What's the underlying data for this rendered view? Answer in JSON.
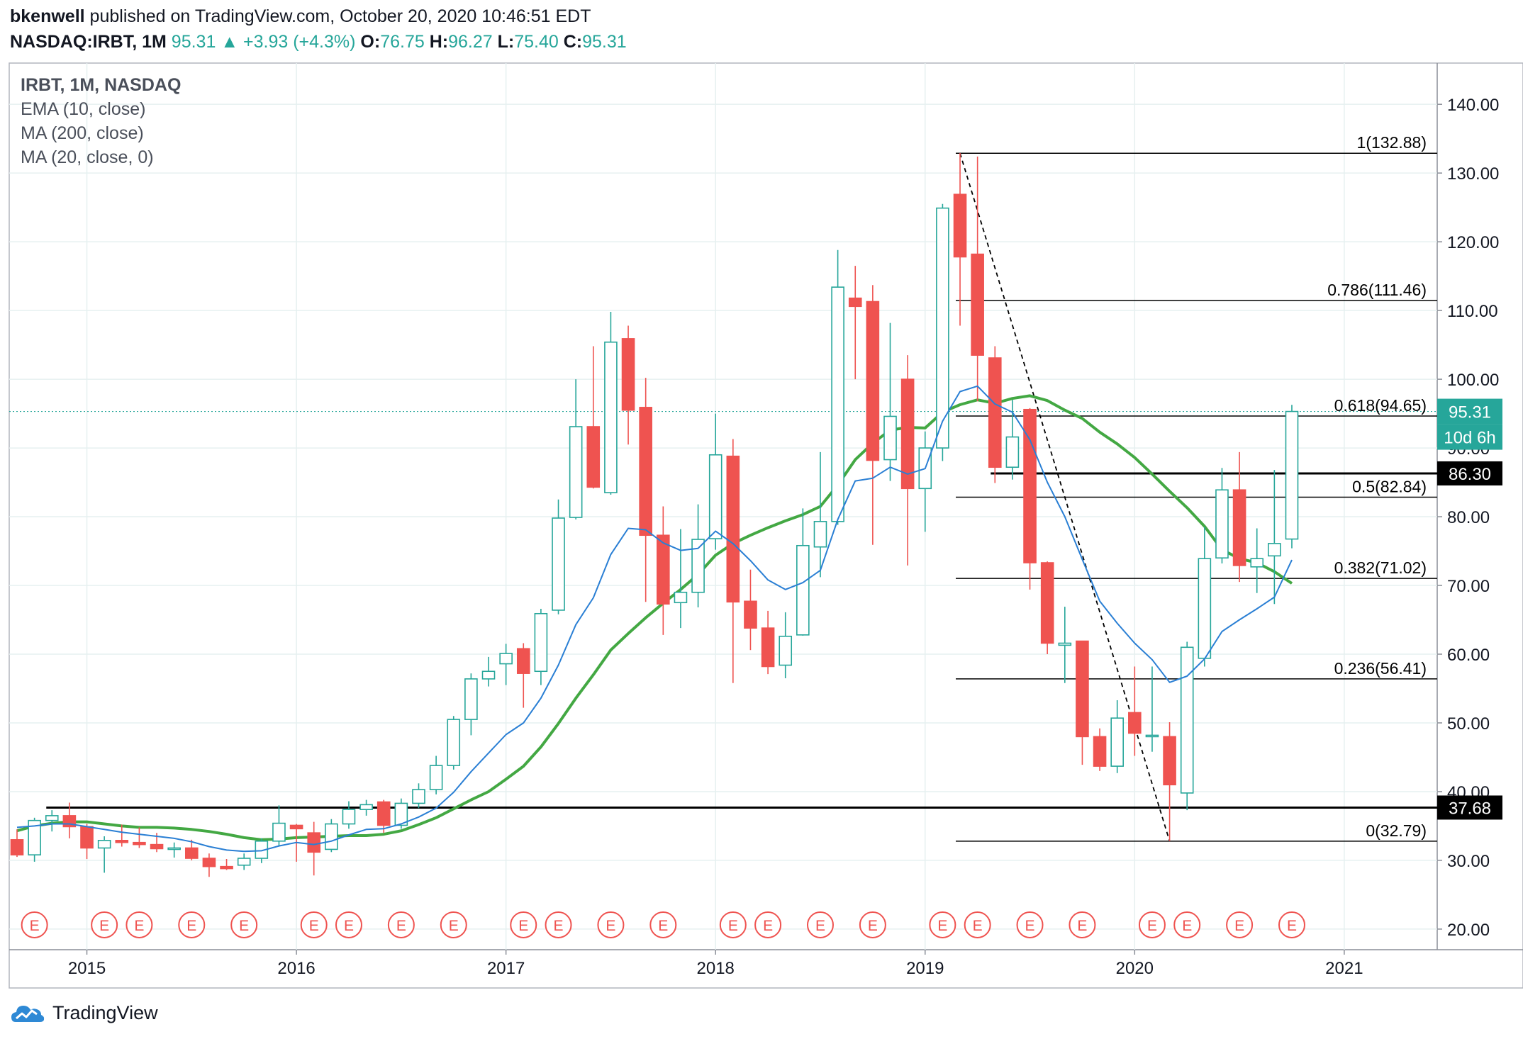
{
  "header": {
    "author": "bkenwell",
    "published_text": "published on TradingView.com, October 20, 2020 10:46:51 EDT",
    "symbol": "NASDAQ:IRBT, 1M",
    "last": "95.31",
    "change": "+3.93 (+4.3%)",
    "o_label": "O:",
    "o": "76.75",
    "h_label": "H:",
    "h": "96.27",
    "l_label": "L:",
    "l": "75.40",
    "c_label": "C:",
    "c": "95.31"
  },
  "legend": {
    "title": "IRBT, 1M, NASDAQ",
    "ema": "EMA (10, close)",
    "ma200": "MA (200, close)",
    "ma20": "MA (20, close, 0)"
  },
  "footer": {
    "brand": "TradingView"
  },
  "colors": {
    "up": "#26a69a",
    "down": "#ef5350",
    "ema": "#2a7fd4",
    "ma20": "#43a843",
    "fib": "#000000",
    "earnings": "#ef5350",
    "grid": "#e6f0f0"
  },
  "chart_data": {
    "type": "candlestick",
    "ylim": [
      17,
      146
    ],
    "y_ticks": [
      "20.00",
      "30.00",
      "40.00",
      "50.00",
      "60.00",
      "70.00",
      "80.00",
      "90.00",
      "100.00",
      "110.00",
      "120.00",
      "130.00",
      "140.00"
    ],
    "x_ticks": [
      "2015",
      "2016",
      "2017",
      "2018",
      "2019",
      "2020",
      "2021"
    ],
    "candles": [
      {
        "t": "2014-09",
        "o": 33.0,
        "h": 34.5,
        "l": 30.5,
        "c": 30.8
      },
      {
        "t": "2014-10",
        "o": 30.8,
        "h": 36.2,
        "l": 29.8,
        "c": 35.8
      },
      {
        "t": "2014-11",
        "o": 35.8,
        "h": 37.3,
        "l": 34.2,
        "c": 36.5
      },
      {
        "t": "2014-12",
        "o": 36.5,
        "h": 38.4,
        "l": 33.2,
        "c": 34.9
      },
      {
        "t": "2015-01",
        "o": 34.9,
        "h": 35.3,
        "l": 30.2,
        "c": 31.8
      },
      {
        "t": "2015-02",
        "o": 31.8,
        "h": 33.5,
        "l": 28.2,
        "c": 32.9
      },
      {
        "t": "2015-03",
        "o": 32.9,
        "h": 35.2,
        "l": 32.0,
        "c": 32.6
      },
      {
        "t": "2015-04",
        "o": 32.6,
        "h": 34.8,
        "l": 31.8,
        "c": 32.3
      },
      {
        "t": "2015-05",
        "o": 32.3,
        "h": 34.0,
        "l": 31.2,
        "c": 31.7
      },
      {
        "t": "2015-06",
        "o": 31.7,
        "h": 32.6,
        "l": 30.4,
        "c": 31.8
      },
      {
        "t": "2015-07",
        "o": 31.8,
        "h": 33.0,
        "l": 30.0,
        "c": 30.3
      },
      {
        "t": "2015-08",
        "o": 30.3,
        "h": 31.0,
        "l": 27.6,
        "c": 29.1
      },
      {
        "t": "2015-09",
        "o": 29.1,
        "h": 30.2,
        "l": 28.6,
        "c": 28.8
      },
      {
        "t": "2015-10",
        "o": 29.3,
        "h": 31.0,
        "l": 28.6,
        "c": 30.3
      },
      {
        "t": "2015-11",
        "o": 30.3,
        "h": 33.2,
        "l": 29.6,
        "c": 32.8
      },
      {
        "t": "2015-12",
        "o": 32.8,
        "h": 38.0,
        "l": 32.1,
        "c": 35.4
      },
      {
        "t": "2016-01",
        "o": 35.1,
        "h": 35.3,
        "l": 29.8,
        "c": 34.6
      },
      {
        "t": "2016-02",
        "o": 34.0,
        "h": 35.6,
        "l": 27.8,
        "c": 31.2
      },
      {
        "t": "2016-03",
        "o": 31.6,
        "h": 36.0,
        "l": 31.2,
        "c": 35.3
      },
      {
        "t": "2016-04",
        "o": 35.3,
        "h": 38.6,
        "l": 34.6,
        "c": 37.4
      },
      {
        "t": "2016-05",
        "o": 37.4,
        "h": 38.8,
        "l": 36.5,
        "c": 38.1
      },
      {
        "t": "2016-06",
        "o": 38.5,
        "h": 38.8,
        "l": 34.0,
        "c": 35.1
      },
      {
        "t": "2016-07",
        "o": 35.1,
        "h": 39.0,
        "l": 34.6,
        "c": 38.3
      },
      {
        "t": "2016-08",
        "o": 38.3,
        "h": 41.2,
        "l": 37.6,
        "c": 40.3
      },
      {
        "t": "2016-09",
        "o": 40.3,
        "h": 45.2,
        "l": 39.6,
        "c": 43.8
      },
      {
        "t": "2016-10",
        "o": 43.8,
        "h": 51.0,
        "l": 43.2,
        "c": 50.5
      },
      {
        "t": "2016-11",
        "o": 50.5,
        "h": 57.2,
        "l": 48.2,
        "c": 56.4
      },
      {
        "t": "2016-12",
        "o": 56.4,
        "h": 59.6,
        "l": 55.3,
        "c": 57.5
      },
      {
        "t": "2017-01",
        "o": 58.6,
        "h": 61.5,
        "l": 55.5,
        "c": 60.1
      },
      {
        "t": "2017-02",
        "o": 60.8,
        "h": 61.6,
        "l": 52.2,
        "c": 57.2
      },
      {
        "t": "2017-03",
        "o": 57.5,
        "h": 66.6,
        "l": 55.5,
        "c": 65.9
      },
      {
        "t": "2017-04",
        "o": 66.4,
        "h": 82.5,
        "l": 65.8,
        "c": 79.8
      },
      {
        "t": "2017-05",
        "o": 79.9,
        "h": 100.0,
        "l": 79.6,
        "c": 93.1
      },
      {
        "t": "2017-06",
        "o": 93.1,
        "h": 104.8,
        "l": 84.1,
        "c": 84.3
      },
      {
        "t": "2017-07",
        "o": 83.5,
        "h": 109.8,
        "l": 83.2,
        "c": 105.4
      },
      {
        "t": "2017-08",
        "o": 105.9,
        "h": 107.8,
        "l": 90.5,
        "c": 95.5
      },
      {
        "t": "2017-09",
        "o": 95.9,
        "h": 100.2,
        "l": 67.6,
        "c": 77.3
      },
      {
        "t": "2017-10",
        "o": 77.3,
        "h": 81.5,
        "l": 62.8,
        "c": 67.3
      },
      {
        "t": "2017-11",
        "o": 67.5,
        "h": 78.2,
        "l": 63.8,
        "c": 69.0
      },
      {
        "t": "2017-12",
        "o": 69.0,
        "h": 81.8,
        "l": 66.8,
        "c": 76.7
      },
      {
        "t": "2018-01",
        "o": 76.8,
        "h": 95.0,
        "l": 75.2,
        "c": 89.0
      },
      {
        "t": "2018-02",
        "o": 88.8,
        "h": 91.3,
        "l": 55.8,
        "c": 67.6
      },
      {
        "t": "2018-03",
        "o": 67.7,
        "h": 72.3,
        "l": 60.6,
        "c": 63.8
      },
      {
        "t": "2018-04",
        "o": 63.8,
        "h": 66.3,
        "l": 57.1,
        "c": 58.2
      },
      {
        "t": "2018-05",
        "o": 58.4,
        "h": 66.1,
        "l": 56.5,
        "c": 62.6
      },
      {
        "t": "2018-06",
        "o": 62.8,
        "h": 81.2,
        "l": 62.7,
        "c": 75.8
      },
      {
        "t": "2018-07",
        "o": 75.6,
        "h": 89.4,
        "l": 71.2,
        "c": 79.3
      },
      {
        "t": "2018-08",
        "o": 79.3,
        "h": 118.8,
        "l": 78.8,
        "c": 113.4
      },
      {
        "t": "2018-09",
        "o": 111.8,
        "h": 116.5,
        "l": 100.0,
        "c": 110.6
      },
      {
        "t": "2018-10",
        "o": 111.3,
        "h": 113.7,
        "l": 75.9,
        "c": 88.2
      },
      {
        "t": "2018-11",
        "o": 88.3,
        "h": 108.2,
        "l": 85.2,
        "c": 94.6
      },
      {
        "t": "2018-12",
        "o": 100.0,
        "h": 103.5,
        "l": 72.9,
        "c": 84.1
      },
      {
        "t": "2019-01",
        "o": 84.1,
        "h": 92.4,
        "l": 77.8,
        "c": 90.0
      },
      {
        "t": "2019-02",
        "o": 90.0,
        "h": 125.5,
        "l": 88.1,
        "c": 124.9
      },
      {
        "t": "2019-03",
        "o": 126.9,
        "h": 132.9,
        "l": 107.8,
        "c": 117.8
      },
      {
        "t": "2019-04",
        "o": 118.2,
        "h": 132.4,
        "l": 96.8,
        "c": 103.5
      },
      {
        "t": "2019-05",
        "o": 103.1,
        "h": 104.8,
        "l": 84.9,
        "c": 87.2
      },
      {
        "t": "2019-06",
        "o": 87.2,
        "h": 97.0,
        "l": 85.4,
        "c": 91.6
      },
      {
        "t": "2019-07",
        "o": 95.6,
        "h": 95.8,
        "l": 69.4,
        "c": 73.3
      },
      {
        "t": "2019-08",
        "o": 73.3,
        "h": 73.5,
        "l": 60.0,
        "c": 61.6
      },
      {
        "t": "2019-09",
        "o": 61.3,
        "h": 66.9,
        "l": 55.8,
        "c": 61.6
      },
      {
        "t": "2019-10",
        "o": 61.9,
        "h": 61.9,
        "l": 43.9,
        "c": 48.0
      },
      {
        "t": "2019-11",
        "o": 48.0,
        "h": 49.2,
        "l": 43.0,
        "c": 43.7
      },
      {
        "t": "2019-12",
        "o": 43.7,
        "h": 53.3,
        "l": 42.7,
        "c": 50.7
      },
      {
        "t": "2020-01",
        "o": 51.5,
        "h": 58.2,
        "l": 45.2,
        "c": 48.5
      },
      {
        "t": "2020-02",
        "o": 48.0,
        "h": 58.2,
        "l": 45.8,
        "c": 48.2
      },
      {
        "t": "2020-03",
        "o": 48.0,
        "h": 50.1,
        "l": 32.8,
        "c": 41.0
      },
      {
        "t": "2020-04",
        "o": 39.8,
        "h": 61.8,
        "l": 37.3,
        "c": 61.0
      },
      {
        "t": "2020-05",
        "o": 59.4,
        "h": 78.5,
        "l": 58.2,
        "c": 73.9
      },
      {
        "t": "2020-06",
        "o": 74.0,
        "h": 87.1,
        "l": 73.2,
        "c": 83.9
      },
      {
        "t": "2020-07",
        "o": 83.9,
        "h": 89.4,
        "l": 70.5,
        "c": 72.9
      },
      {
        "t": "2020-08",
        "o": 72.7,
        "h": 78.3,
        "l": 68.9,
        "c": 73.9
      },
      {
        "t": "2020-09",
        "o": 74.3,
        "h": 86.8,
        "l": 67.3,
        "c": 76.1
      },
      {
        "t": "2020-10",
        "o": 76.75,
        "h": 96.27,
        "l": 75.4,
        "c": 95.31
      }
    ],
    "ema10": [
      34.8,
      35.0,
      35.3,
      35.3,
      34.9,
      34.5,
      34.1,
      33.8,
      33.5,
      33.2,
      32.7,
      32.0,
      31.5,
      31.3,
      31.4,
      32.1,
      32.6,
      32.3,
      32.8,
      33.7,
      34.5,
      34.6,
      35.3,
      36.3,
      37.6,
      39.9,
      42.9,
      45.6,
      48.3,
      50.0,
      53.6,
      58.4,
      64.3,
      68.2,
      74.5,
      78.3,
      78.1,
      76.2,
      75.1,
      75.4,
      77.9,
      76.1,
      73.6,
      70.8,
      69.4,
      70.4,
      72.2,
      79.6,
      85.2,
      85.6,
      87.2,
      86.2,
      87.0,
      93.9,
      98.2,
      99.0,
      96.4,
      95.2,
      91.2,
      85.0,
      80.0,
      73.8,
      67.7,
      64.5,
      61.6,
      59.2,
      55.9,
      56.8,
      59.3,
      63.3,
      65.0,
      66.6,
      68.3,
      73.7
    ],
    "ma20": [
      34.3,
      35.0,
      35.4,
      35.6,
      35.6,
      35.3,
      35.0,
      34.8,
      34.8,
      34.7,
      34.5,
      34.2,
      33.8,
      33.3,
      33.0,
      33.1,
      33.3,
      33.4,
      33.5,
      33.6,
      33.6,
      33.8,
      34.3,
      35.2,
      36.2,
      37.5,
      38.8,
      40.0,
      41.8,
      43.7,
      46.5,
      49.9,
      53.6,
      57.0,
      60.6,
      63.0,
      65.3,
      67.4,
      69.4,
      71.6,
      74.4,
      76.1,
      77.3,
      78.4,
      79.4,
      80.3,
      81.5,
      84.6,
      88.3,
      90.7,
      92.6,
      93.0,
      92.9,
      95.2,
      96.3,
      97.0,
      96.5,
      97.2,
      97.6,
      96.9,
      95.5,
      94.3,
      92.3,
      90.6,
      88.6,
      86.2,
      83.7,
      81.3,
      78.6,
      75.2,
      73.9,
      73.3,
      72.0,
      70.3
    ],
    "fibonacci": [
      {
        "label": "1(132.88)",
        "value": 132.88
      },
      {
        "label": "0.786(111.46)",
        "value": 111.46
      },
      {
        "label": "0.618(94.65)",
        "value": 94.65
      },
      {
        "label": "0.5(82.84)",
        "value": 82.84
      },
      {
        "label": "0.382(71.02)",
        "value": 71.02
      },
      {
        "label": "0.236(56.41)",
        "value": 56.41
      },
      {
        "label": "0(32.79)",
        "value": 32.79
      }
    ],
    "horizontal_lines": [
      {
        "label": "86.30",
        "value": 86.3
      },
      {
        "label": "37.68",
        "value": 37.68
      }
    ],
    "price_tag": "95.31",
    "countdown": "10d 6h",
    "earnings_marker": "E",
    "earnings": [
      "2014-10",
      "2015-02",
      "2015-04",
      "2015-07",
      "2015-10",
      "2016-02",
      "2016-04",
      "2016-07",
      "2016-10",
      "2017-02",
      "2017-04",
      "2017-07",
      "2017-10",
      "2018-02",
      "2018-04",
      "2018-07",
      "2018-10",
      "2019-02",
      "2019-04",
      "2019-07",
      "2019-10",
      "2020-02",
      "2020-04",
      "2020-07",
      "2020-10"
    ]
  }
}
